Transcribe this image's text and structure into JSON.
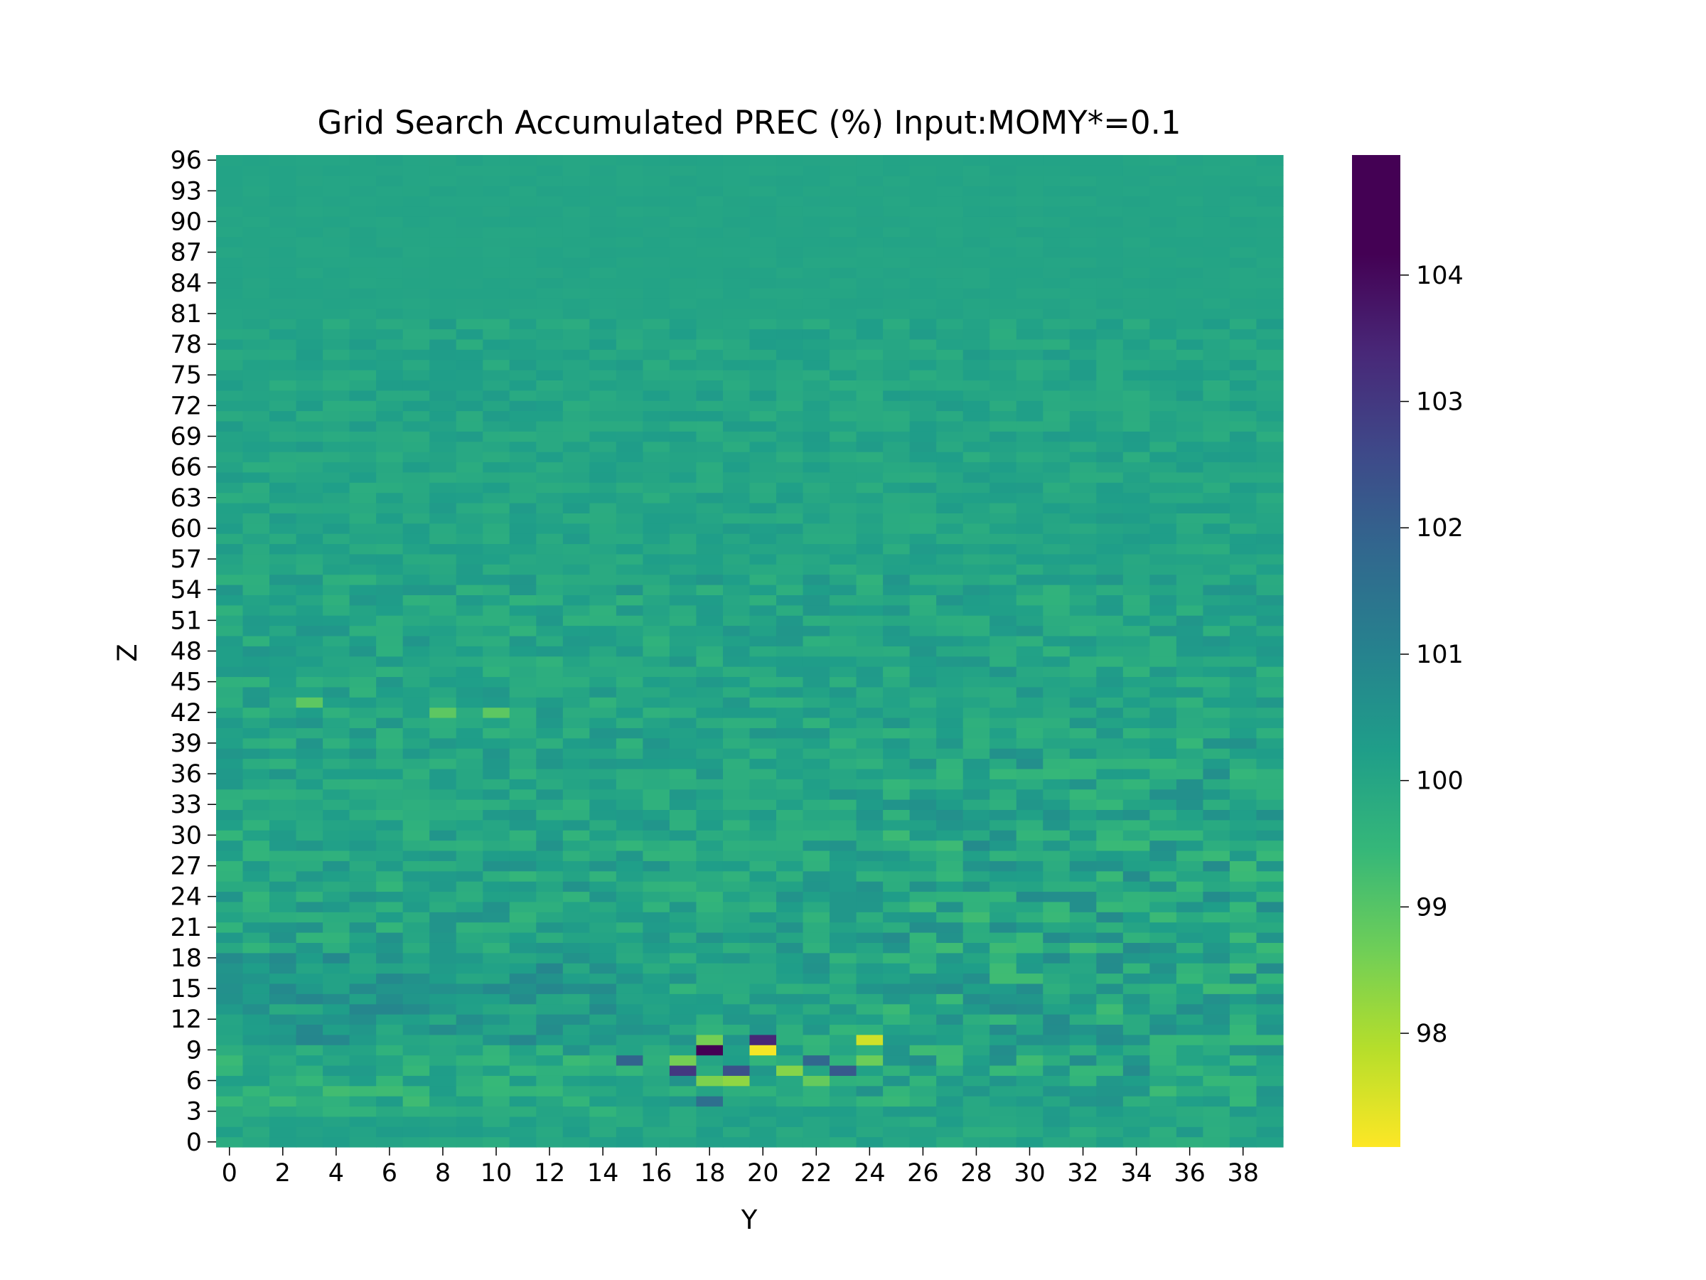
{
  "chart_data": {
    "type": "heatmap",
    "title": "Grid Search Accumulated PREC (%) Input:MOMY*=0.1",
    "xlabel": "Y",
    "ylabel": "Z",
    "x_count": 40,
    "y_count": 97,
    "x_ticks": [
      0,
      2,
      4,
      6,
      8,
      10,
      12,
      14,
      16,
      18,
      20,
      22,
      24,
      26,
      28,
      30,
      32,
      34,
      36,
      38
    ],
    "y_ticks": [
      0,
      3,
      6,
      9,
      12,
      15,
      18,
      21,
      24,
      27,
      30,
      33,
      36,
      39,
      42,
      45,
      48,
      51,
      54,
      57,
      60,
      63,
      66,
      69,
      72,
      75,
      78,
      81,
      84,
      87,
      90,
      93,
      96
    ],
    "colorbar": {
      "colormap": "viridis",
      "vmin": 97.1,
      "vmax": 104.95,
      "ticks": [
        98,
        99,
        100,
        101,
        102,
        103,
        104
      ]
    },
    "baseline_value": 100.05,
    "hotspots": [
      {
        "y": 18,
        "z": 9,
        "value": 104.9
      },
      {
        "y": 20,
        "z": 10,
        "value": 103.4
      },
      {
        "y": 20,
        "z": 9,
        "value": 97.2
      },
      {
        "y": 24,
        "z": 10,
        "value": 97.6
      },
      {
        "y": 19,
        "z": 7,
        "value": 102.4
      },
      {
        "y": 17,
        "z": 8,
        "value": 98.6
      },
      {
        "y": 17,
        "z": 7,
        "value": 103.0
      },
      {
        "y": 18,
        "z": 6,
        "value": 98.5
      },
      {
        "y": 19,
        "z": 6,
        "value": 98.3
      },
      {
        "y": 21,
        "z": 7,
        "value": 98.4
      },
      {
        "y": 23,
        "z": 7,
        "value": 102.2
      },
      {
        "y": 15,
        "z": 8,
        "value": 101.9
      },
      {
        "y": 22,
        "z": 8,
        "value": 101.8
      },
      {
        "y": 24,
        "z": 8,
        "value": 98.7
      },
      {
        "y": 18,
        "z": 10,
        "value": 98.6
      },
      {
        "y": 22,
        "z": 6,
        "value": 98.8
      },
      {
        "y": 18,
        "z": 4,
        "value": 101.6
      },
      {
        "y": 3,
        "z": 43,
        "value": 98.9
      },
      {
        "y": 8,
        "z": 42,
        "value": 98.9
      },
      {
        "y": 10,
        "z": 42,
        "value": 98.9
      }
    ]
  }
}
